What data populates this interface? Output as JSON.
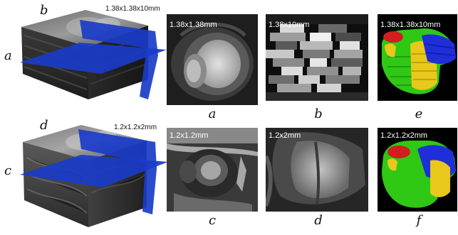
{
  "top_cube": {
    "resolution": "1.38x1.38x10mm",
    "plane_labels": [
      "a",
      "b"
    ]
  },
  "bottom_cube": {
    "resolution": "1.2x1.2x2mm",
    "plane_labels": [
      "c",
      "d"
    ]
  },
  "panels": [
    {
      "id": "a",
      "resolution": "1.38x1.38mm",
      "caption": "a"
    },
    {
      "id": "b",
      "resolution": "1.38x10mm",
      "caption": "b"
    },
    {
      "id": "e",
      "resolution": "1.38x1.38x10mm",
      "caption": "e"
    },
    {
      "id": "c",
      "resolution": "1.2x1.2mm",
      "caption": "c"
    },
    {
      "id": "d",
      "resolution": "1.2x2mm",
      "caption": "d"
    },
    {
      "id": "f",
      "resolution": "1.2x1.2x2mm",
      "caption": "f"
    }
  ],
  "colors": {
    "plane_blue": "#1a3cc8",
    "mesh_green": "#2fc814",
    "mesh_yellow": "#e8c81a",
    "mesh_blue": "#1e2ed8",
    "mesh_red": "#d21e1e"
  }
}
